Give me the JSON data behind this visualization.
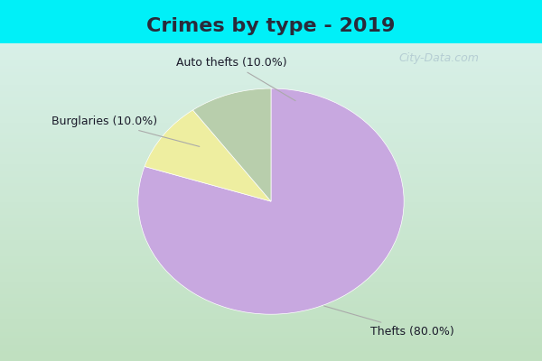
{
  "title": "Crimes by type - 2019",
  "slices": [
    {
      "label": "Thefts (80.0%)",
      "value": 80.0,
      "color": "#c8a8e0"
    },
    {
      "label": "Auto thefts (10.0%)",
      "value": 10.0,
      "color": "#eeeea0"
    },
    {
      "label": "Burglaries (10.0%)",
      "value": 10.0,
      "color": "#b8ceac"
    }
  ],
  "bg_color_outer": "#00f0f8",
  "bg_color_inner": "#cce8d8",
  "title_fontsize": 16,
  "label_fontsize": 9,
  "watermark": "City-Data.com",
  "startangle": 90,
  "title_color": "#2a2a3a",
  "label_color": "#1a1a2a",
  "arrow_color": "#aaaaaa",
  "title_bar_height": 0.12
}
